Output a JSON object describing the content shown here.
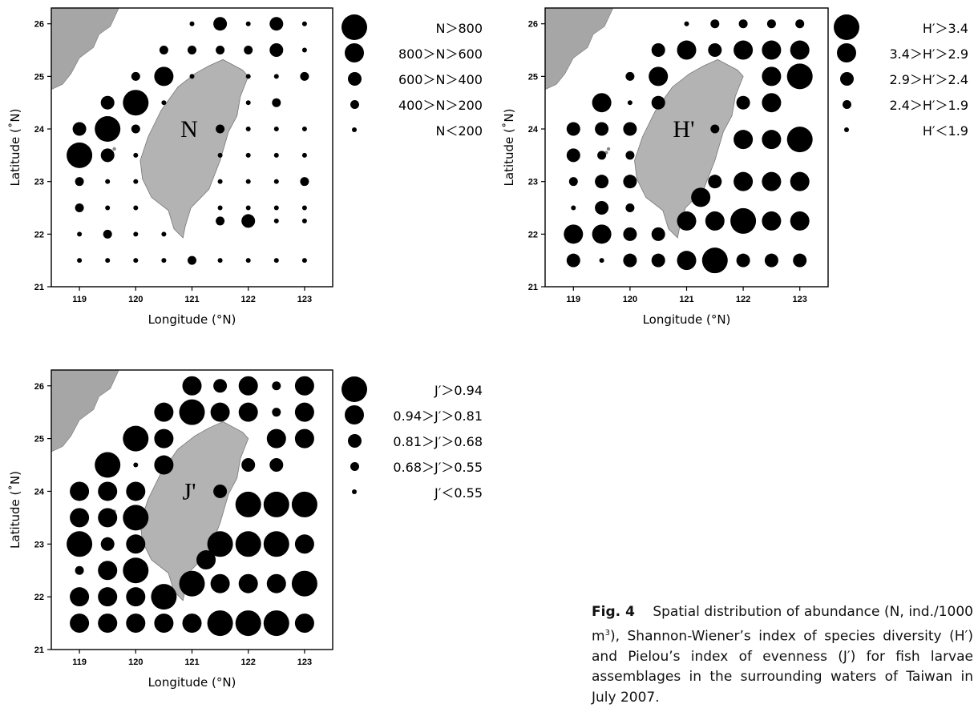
{
  "caption": {
    "fig": "Fig. 4",
    "text_before_sup": "Spatial distribution of abundance (N, ind./1000 m",
    "sup": "3",
    "text_after_sup": "), Shannon-Wiener’s index of species diversity (H′) and Pielou’s index of evenness (J′) for fish larvae assemblages in the surrounding waters of Taiwan in July 2007."
  },
  "chart_data": [
    {
      "type": "scatter",
      "panel_label": "N",
      "xlabel": "Longitude (°N)",
      "ylabel": "Latitude (˚N)",
      "xlim": [
        118.5,
        123.5
      ],
      "ylim": [
        21,
        26.3
      ],
      "xticks": [
        119,
        120,
        121,
        122,
        123
      ],
      "yticks": [
        21,
        22,
        23,
        24,
        25,
        26
      ],
      "legend": [
        {
          "label": "N＞800",
          "class": 5
        },
        {
          "label": "800＞N＞600",
          "class": 4
        },
        {
          "label": "600＞N＞400",
          "class": 3
        },
        {
          "label": "400＞N＞200",
          "class": 2
        },
        {
          "label": "N＜200",
          "class": 1
        }
      ],
      "points": [
        [
          121,
          26,
          1
        ],
        [
          121.5,
          26,
          3
        ],
        [
          122,
          26,
          1
        ],
        [
          122.5,
          26,
          3
        ],
        [
          123,
          26,
          1
        ],
        [
          120.5,
          25.5,
          2
        ],
        [
          121,
          25.5,
          2
        ],
        [
          121.5,
          25.5,
          2
        ],
        [
          122,
          25.5,
          2
        ],
        [
          122.5,
          25.5,
          3
        ],
        [
          123,
          25.5,
          1
        ],
        [
          120,
          25,
          2
        ],
        [
          120.5,
          25,
          4
        ],
        [
          121,
          25,
          1
        ],
        [
          122,
          25,
          1
        ],
        [
          122.5,
          25,
          1
        ],
        [
          123,
          25,
          2
        ],
        [
          119.5,
          24.5,
          3
        ],
        [
          120,
          24.5,
          5
        ],
        [
          120.5,
          24.5,
          1
        ],
        [
          122,
          24.5,
          1
        ],
        [
          122.5,
          24.5,
          2
        ],
        [
          119,
          24,
          3
        ],
        [
          119.5,
          24,
          5
        ],
        [
          120,
          24,
          2
        ],
        [
          121.5,
          24,
          2
        ],
        [
          122,
          24,
          1
        ],
        [
          122.5,
          24,
          1
        ],
        [
          123,
          24,
          1
        ],
        [
          119,
          23.5,
          5
        ],
        [
          119.5,
          23.5,
          3
        ],
        [
          120,
          23.5,
          1
        ],
        [
          121.5,
          23.5,
          1
        ],
        [
          122,
          23.5,
          1
        ],
        [
          122.5,
          23.5,
          1
        ],
        [
          123,
          23.5,
          1
        ],
        [
          119,
          23,
          2
        ],
        [
          119.5,
          23,
          1
        ],
        [
          120,
          23,
          1
        ],
        [
          121.5,
          23,
          1
        ],
        [
          122,
          23,
          1
        ],
        [
          122.5,
          23,
          1
        ],
        [
          123,
          23,
          2
        ],
        [
          119,
          22.5,
          2
        ],
        [
          119.5,
          22.5,
          1
        ],
        [
          120,
          22.5,
          1
        ],
        [
          121.5,
          22.5,
          1
        ],
        [
          122,
          22.5,
          1
        ],
        [
          122.5,
          22.5,
          1
        ],
        [
          123,
          22.5,
          1
        ],
        [
          119,
          22,
          1
        ],
        [
          119.5,
          22,
          2
        ],
        [
          120,
          22,
          1
        ],
        [
          120.5,
          22,
          1
        ],
        [
          121.5,
          22.25,
          2
        ],
        [
          122,
          22.25,
          3
        ],
        [
          122.5,
          22.25,
          1
        ],
        [
          123,
          22.25,
          1
        ],
        [
          119,
          21.5,
          1
        ],
        [
          119.5,
          21.5,
          1
        ],
        [
          120,
          21.5,
          1
        ],
        [
          120.5,
          21.5,
          1
        ],
        [
          121,
          21.5,
          2
        ],
        [
          121.5,
          21.5,
          1
        ],
        [
          122,
          21.5,
          1
        ],
        [
          122.5,
          21.5,
          1
        ],
        [
          123,
          21.5,
          1
        ]
      ]
    },
    {
      "type": "scatter",
      "panel_label": "H'",
      "xlabel": "Longitude (°N)",
      "ylabel": "Latitude (˚N)",
      "xlim": [
        118.5,
        123.5
      ],
      "ylim": [
        21,
        26.3
      ],
      "xticks": [
        119,
        120,
        121,
        122,
        123
      ],
      "yticks": [
        21,
        22,
        23,
        24,
        25,
        26
      ],
      "legend": [
        {
          "label": "H′＞3.4",
          "class": 5
        },
        {
          "label": "3.4＞H′＞2.9",
          "class": 4
        },
        {
          "label": "2.9＞H′＞2.4",
          "class": 3
        },
        {
          "label": "2.4＞H′＞1.9",
          "class": 2
        },
        {
          "label": "H′＜1.9",
          "class": 1
        }
      ],
      "points": [
        [
          121,
          26,
          1
        ],
        [
          121.5,
          26,
          2
        ],
        [
          122,
          26,
          2
        ],
        [
          122.5,
          26,
          2
        ],
        [
          123,
          26,
          2
        ],
        [
          120.5,
          25.5,
          3
        ],
        [
          121,
          25.5,
          4
        ],
        [
          121.5,
          25.5,
          3
        ],
        [
          122,
          25.5,
          4
        ],
        [
          122.5,
          25.5,
          4
        ],
        [
          123,
          25.5,
          4
        ],
        [
          120,
          25,
          2
        ],
        [
          120.5,
          25,
          4
        ],
        [
          122.5,
          25,
          4
        ],
        [
          123,
          25,
          5
        ],
        [
          119.5,
          24.5,
          4
        ],
        [
          120,
          24.5,
          1
        ],
        [
          120.5,
          24.5,
          3
        ],
        [
          122,
          24.5,
          3
        ],
        [
          122.5,
          24.5,
          4
        ],
        [
          119,
          24,
          3
        ],
        [
          119.5,
          24,
          3
        ],
        [
          120,
          24,
          3
        ],
        [
          121.5,
          24,
          2
        ],
        [
          122,
          23.8,
          4
        ],
        [
          122.5,
          23.8,
          4
        ],
        [
          123,
          23.8,
          5
        ],
        [
          119,
          23.5,
          3
        ],
        [
          119.5,
          23.5,
          2
        ],
        [
          120,
          23.5,
          2
        ],
        [
          119,
          23,
          2
        ],
        [
          119.5,
          23,
          3
        ],
        [
          120,
          23,
          3
        ],
        [
          121.5,
          23,
          3
        ],
        [
          122,
          23,
          4
        ],
        [
          122.5,
          23,
          4
        ],
        [
          123,
          23,
          4
        ],
        [
          119,
          22.5,
          1
        ],
        [
          119.5,
          22.5,
          3
        ],
        [
          120,
          22.5,
          2
        ],
        [
          121.25,
          22.7,
          4
        ],
        [
          122,
          22.25,
          5
        ],
        [
          122.5,
          22.25,
          4
        ],
        [
          123,
          22.25,
          4
        ],
        [
          121.5,
          22.25,
          4
        ],
        [
          121,
          22.25,
          4
        ],
        [
          119,
          22,
          4
        ],
        [
          119.5,
          22,
          4
        ],
        [
          120,
          22,
          3
        ],
        [
          120.5,
          22,
          3
        ],
        [
          119,
          21.5,
          3
        ],
        [
          119.5,
          21.5,
          1
        ],
        [
          120,
          21.5,
          3
        ],
        [
          120.5,
          21.5,
          3
        ],
        [
          121,
          21.5,
          4
        ],
        [
          121.5,
          21.5,
          5
        ],
        [
          122,
          21.5,
          3
        ],
        [
          122.5,
          21.5,
          3
        ],
        [
          123,
          21.5,
          3
        ]
      ]
    },
    {
      "type": "scatter",
      "panel_label": "J'",
      "xlabel": "Longitude (°N)",
      "ylabel": "Latitude (˚N)",
      "xlim": [
        118.5,
        123.5
      ],
      "ylim": [
        21,
        26.3
      ],
      "xticks": [
        119,
        120,
        121,
        122,
        123
      ],
      "yticks": [
        21,
        22,
        23,
        24,
        25,
        26
      ],
      "legend": [
        {
          "label": "J′＞0.94",
          "class": 5
        },
        {
          "label": "0.94＞J′＞0.81",
          "class": 4
        },
        {
          "label": "0.81＞J′＞0.68",
          "class": 3
        },
        {
          "label": "0.68＞J′＞0.55",
          "class": 2
        },
        {
          "label": "J′＜0.55",
          "class": 1
        }
      ],
      "points": [
        [
          121,
          26,
          4
        ],
        [
          121.5,
          26,
          3
        ],
        [
          122,
          26,
          4
        ],
        [
          122.5,
          26,
          2
        ],
        [
          123,
          26,
          4
        ],
        [
          120.5,
          25.5,
          4
        ],
        [
          121,
          25.5,
          5
        ],
        [
          121.5,
          25.5,
          4
        ],
        [
          122,
          25.5,
          4
        ],
        [
          122.5,
          25.5,
          2
        ],
        [
          123,
          25.5,
          4
        ],
        [
          120,
          25,
          5
        ],
        [
          120.5,
          25,
          4
        ],
        [
          122.5,
          25,
          4
        ],
        [
          123,
          25,
          4
        ],
        [
          119.5,
          24.5,
          5
        ],
        [
          120,
          24.5,
          1
        ],
        [
          120.5,
          24.5,
          4
        ],
        [
          122,
          24.5,
          3
        ],
        [
          122.5,
          24.5,
          3
        ],
        [
          119,
          24,
          4
        ],
        [
          119.5,
          24,
          4
        ],
        [
          120,
          24,
          4
        ],
        [
          121.5,
          24,
          3
        ],
        [
          122,
          23.75,
          5
        ],
        [
          122.5,
          23.75,
          5
        ],
        [
          123,
          23.75,
          5
        ],
        [
          119,
          23.5,
          4
        ],
        [
          119.5,
          23.5,
          4
        ],
        [
          120,
          23.5,
          5
        ],
        [
          119,
          23,
          5
        ],
        [
          119.5,
          23,
          3
        ],
        [
          120,
          23,
          4
        ],
        [
          121.5,
          23,
          5
        ],
        [
          122,
          23,
          5
        ],
        [
          122.5,
          23,
          5
        ],
        [
          123,
          23,
          4
        ],
        [
          119,
          22.5,
          2
        ],
        [
          119.5,
          22.5,
          4
        ],
        [
          120,
          22.5,
          5
        ],
        [
          121.25,
          22.7,
          4
        ],
        [
          119,
          22,
          4
        ],
        [
          119.5,
          22,
          4
        ],
        [
          120,
          22,
          4
        ],
        [
          120.5,
          22,
          5
        ],
        [
          121.5,
          22.25,
          4
        ],
        [
          122,
          22.25,
          4
        ],
        [
          122.5,
          22.25,
          4
        ],
        [
          123,
          22.25,
          5
        ],
        [
          121,
          22.25,
          5
        ],
        [
          119,
          21.5,
          4
        ],
        [
          119.5,
          21.5,
          4
        ],
        [
          120,
          21.5,
          4
        ],
        [
          120.5,
          21.5,
          4
        ],
        [
          121,
          21.5,
          4
        ],
        [
          121.5,
          21.5,
          5
        ],
        [
          122,
          21.5,
          5
        ],
        [
          122.5,
          21.5,
          5
        ],
        [
          123,
          21.5,
          4
        ]
      ]
    }
  ]
}
